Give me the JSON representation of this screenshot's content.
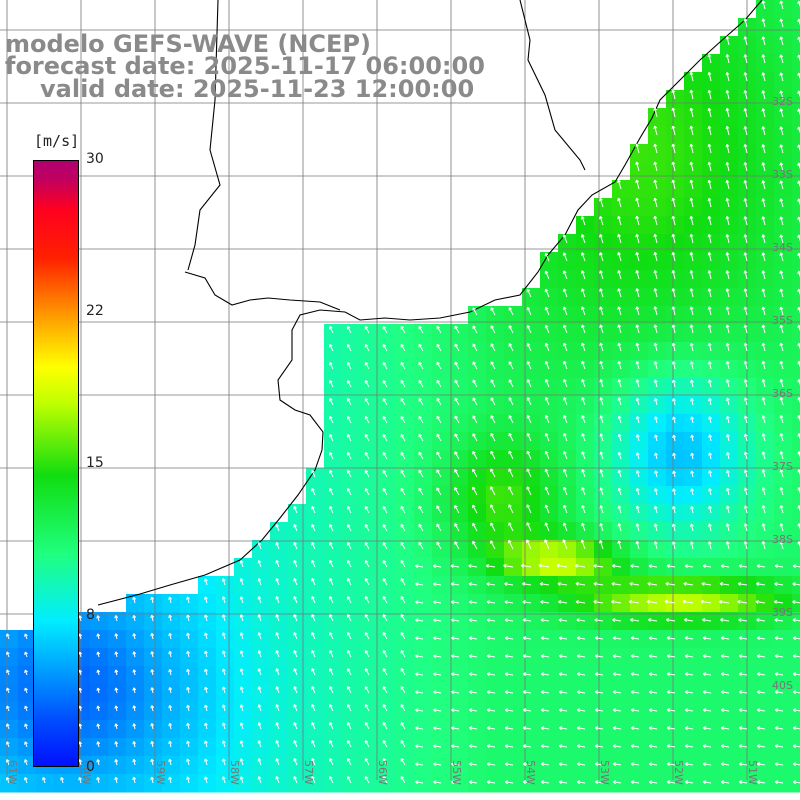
{
  "titles": {
    "line1": "modelo GEFS-WAVE (NCEP)",
    "line2": "forecast date: 2025-11-17 06:00:00",
    "line3": "valid date: 2025-11-23 12:00:00"
  },
  "colorbar": {
    "unit": "[m/s]",
    "ticks": [
      "30",
      "22",
      "15",
      "8",
      "0"
    ],
    "colors": [
      "#0010ff",
      "#00aaff",
      "#00eeff",
      "#20ff80",
      "#10dd10",
      "#c0ff00",
      "#ffff00",
      "#ffa000",
      "#ff2000",
      "#b00070"
    ]
  },
  "grid": {
    "lon_labels": [
      "61W",
      "60W",
      "59W",
      "58W",
      "57W",
      "56W",
      "55W",
      "54W",
      "53W",
      "52W",
      "51W"
    ],
    "lat_labels": [
      "32S",
      "33S",
      "34S",
      "35S",
      "36S",
      "37S",
      "38S",
      "39S",
      "40S"
    ]
  }
}
